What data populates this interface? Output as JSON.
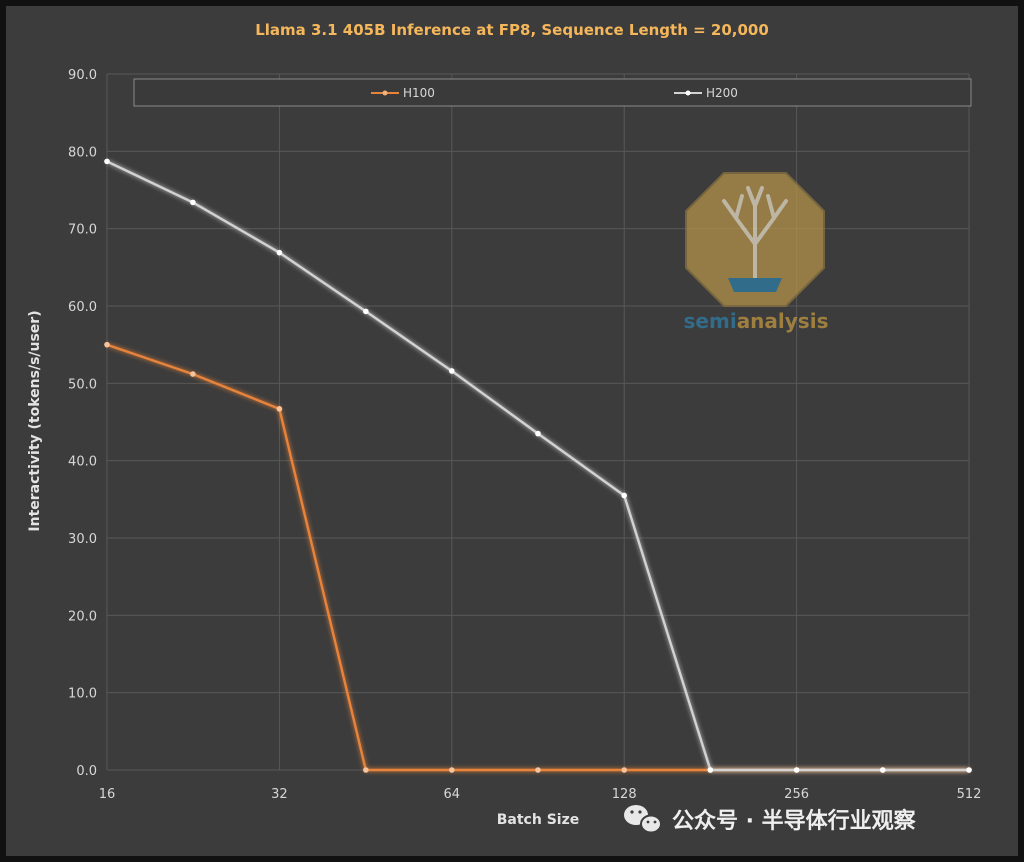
{
  "chart_data": {
    "type": "line",
    "title": "Llama 3.1 405B Inference at FP8, Sequence Length = 20,000",
    "xlabel": "Batch Size",
    "ylabel": "Interactivity (tokens/s/user)",
    "x_scale": "log2",
    "xlim": [
      16,
      512
    ],
    "x_tick_labels": [
      "16",
      "32",
      "64",
      "128",
      "256",
      "512"
    ],
    "ylim": [
      0,
      90
    ],
    "y_tick_labels": [
      "0.0",
      "10.0",
      "20.0",
      "30.0",
      "40.0",
      "50.0",
      "60.0",
      "70.0",
      "80.0",
      "90.0"
    ],
    "grid": true,
    "legend_position": "top",
    "x": [
      16,
      22.6,
      32,
      45.3,
      64,
      90.5,
      128,
      181,
      256,
      362,
      512
    ],
    "series": [
      {
        "name": "H100",
        "color": "#e8833a",
        "values": [
          55.0,
          51.2,
          46.7,
          0.0,
          0.0,
          0.0,
          0.0,
          0.0,
          0.0,
          0.0,
          0.0
        ]
      },
      {
        "name": "H200",
        "color": "#d2d2d2",
        "values": [
          78.7,
          73.4,
          66.9,
          59.3,
          51.6,
          43.5,
          35.5,
          0.0,
          0.0,
          0.0,
          0.0
        ]
      }
    ]
  },
  "watermark": {
    "brand_part1": "semi",
    "brand_part2": "analysis",
    "wechat_text": "公众号 · 半导体行业观察"
  }
}
